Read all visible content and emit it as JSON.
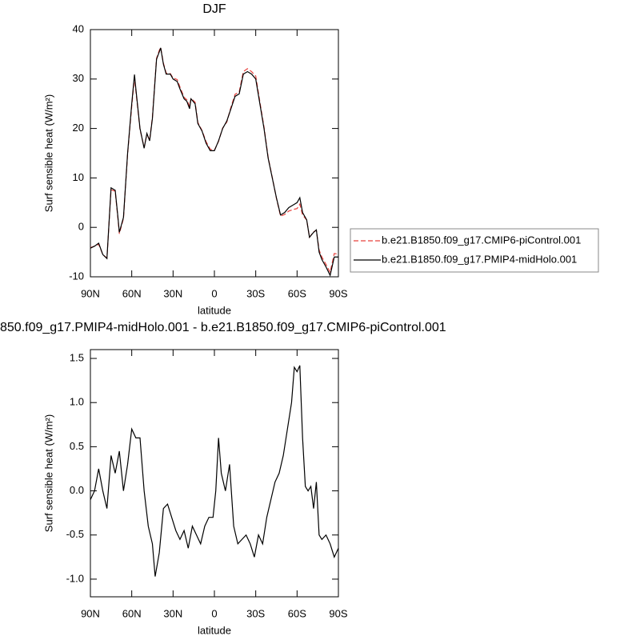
{
  "chart_data": [
    {
      "type": "line",
      "title": "DJF",
      "xlabel": "latitude",
      "ylabel": "Surf sensible heat (W/m²)",
      "xlim": [
        90,
        -90
      ],
      "ylim": [
        -10,
        40
      ],
      "xticks": [
        {
          "value": 90,
          "label": "90N"
        },
        {
          "value": 60,
          "label": "60N"
        },
        {
          "value": 30,
          "label": "30N"
        },
        0,
        {
          "value": -30,
          "label": "30S"
        },
        {
          "value": -60,
          "label": "60S"
        },
        {
          "value": -90,
          "label": "90S"
        }
      ],
      "yticks": [
        -10,
        0,
        10,
        20,
        30,
        40
      ],
      "legend": "outside-right",
      "x": [
        90,
        87,
        84,
        81,
        78,
        75,
        72,
        70,
        69,
        66,
        63,
        60,
        58,
        57,
        54,
        51,
        49,
        47,
        45,
        42,
        40,
        39,
        37,
        35,
        32,
        30,
        27,
        25,
        22,
        20,
        18,
        17,
        14,
        12,
        9,
        6,
        3,
        0,
        -3,
        -6,
        -9,
        -12,
        -15,
        -18,
        -21,
        -24,
        -27,
        -30,
        -33,
        -36,
        -39,
        -42,
        -45,
        -48,
        -51,
        -54,
        -57,
        -60,
        -62,
        -64,
        -67,
        -69,
        -72,
        -74,
        -76,
        -78,
        -81,
        -84,
        -87,
        -90
      ],
      "series": [
        {
          "name": "b.e21.B1850.f09_g17.CMIP6-piControl.001",
          "color": "#e8403c",
          "line_style": "dashed",
          "values": [
            -4.1,
            -3.8,
            -3.4,
            -5.5,
            -6.2,
            7.6,
            7.3,
            1.7,
            -1.3,
            1.8,
            14.8,
            24.5,
            30.3,
            27.6,
            19.8,
            16.2,
            18.8,
            17.7,
            22.3,
            34.2,
            35.8,
            36.4,
            33.2,
            31.2,
            31.1,
            30.2,
            29.9,
            28.4,
            26.3,
            25.8,
            24.5,
            26.1,
            25.3,
            21.2,
            19.6,
            17.3,
            15.8,
            15.6,
            17.4,
            20.1,
            21.3,
            24.3,
            26.9,
            27.4,
            31.5,
            32.1,
            31.5,
            30.6,
            25.4,
            20.3,
            14.2,
            10.1,
            5.9,
            2.3,
            2.6,
            3.3,
            3.6,
            3.8,
            4.7,
            2.5,
            1.5,
            -2.0,
            -0.9,
            -0.6,
            -4.6,
            -6.0,
            -7.5,
            -9.1,
            -5.3,
            -5.4
          ]
        },
        {
          "name": "b.e21.B1850.f09_g17.PMIP4-midHolo.001",
          "color": "#000000",
          "line_style": "solid",
          "values": [
            -4.2,
            -3.8,
            -3.2,
            -5.5,
            -6.3,
            8.0,
            7.5,
            2.0,
            -1.0,
            2.0,
            15.0,
            25.0,
            30.9,
            28.0,
            20.0,
            16.0,
            19.0,
            17.5,
            22.0,
            34.0,
            35.5,
            36.3,
            33.0,
            31.0,
            31.0,
            30.0,
            29.5,
            28.0,
            26.0,
            25.5,
            24.0,
            26.0,
            25.0,
            21.0,
            19.5,
            17.0,
            15.5,
            15.5,
            17.5,
            20.0,
            21.5,
            24.0,
            26.5,
            27.0,
            31.0,
            31.5,
            31.0,
            30.0,
            25.0,
            20.0,
            14.0,
            10.0,
            6.0,
            2.5,
            3.0,
            4.0,
            4.5,
            5.0,
            6.0,
            3.0,
            1.5,
            -2.0,
            -1.0,
            -0.5,
            -5.0,
            -6.5,
            -8.0,
            -9.7,
            -6.0,
            -6.0
          ]
        }
      ]
    },
    {
      "type": "line",
      "title": "850.f09_g17.PMIP4-midHolo.001 - b.e21.B1850.f09_g17.CMIP6-piControl.001",
      "xlabel": "latitude",
      "ylabel": "Surf sensible heat (W/m²)",
      "xlim": [
        90,
        -90
      ],
      "ylim": [
        -1.2,
        1.6
      ],
      "xticks": [
        {
          "value": 90,
          "label": "90N"
        },
        {
          "value": 60,
          "label": "60N"
        },
        {
          "value": 30,
          "label": "30N"
        },
        0,
        {
          "value": -30,
          "label": "30S"
        },
        {
          "value": -60,
          "label": "60S"
        },
        {
          "value": -90,
          "label": "90S"
        }
      ],
      "yticks": [
        {
          "value": -1,
          "label": "-1.0"
        },
        -0.5,
        {
          "value": 0,
          "label": "0.0"
        },
        0.5,
        {
          "value": 1,
          "label": "1.0"
        },
        1.5
      ],
      "x": [
        90,
        87,
        84,
        81,
        78,
        75,
        72,
        69,
        66,
        63,
        60,
        57,
        54,
        51,
        48,
        45,
        43,
        40,
        37,
        34,
        31,
        28,
        25,
        22,
        19,
        16,
        13,
        10,
        7,
        4,
        1,
        -1,
        -3,
        -5,
        -8,
        -11,
        -14,
        -17,
        -20,
        -23,
        -26,
        -29,
        -32,
        -35,
        -38,
        -41,
        -44,
        -47,
        -50,
        -53,
        -56,
        -58,
        -60,
        -62,
        -64,
        -66,
        -68,
        -70,
        -72,
        -74,
        -76,
        -78,
        -81,
        -84,
        -87,
        -90
      ],
      "series": [
        {
          "color": "#000000",
          "line_style": "solid",
          "values": [
            -0.1,
            0.0,
            0.25,
            0.0,
            -0.2,
            0.4,
            0.2,
            0.45,
            0.0,
            0.3,
            0.7,
            0.6,
            0.6,
            0.0,
            -0.4,
            -0.6,
            -0.97,
            -0.7,
            -0.2,
            -0.15,
            -0.3,
            -0.45,
            -0.55,
            -0.45,
            -0.65,
            -0.4,
            -0.5,
            -0.6,
            -0.4,
            -0.3,
            -0.3,
            0.0,
            0.6,
            0.2,
            0.0,
            0.3,
            -0.4,
            -0.6,
            -0.55,
            -0.5,
            -0.6,
            -0.75,
            -0.5,
            -0.6,
            -0.3,
            -0.1,
            0.1,
            0.2,
            0.4,
            0.7,
            1.0,
            1.4,
            1.35,
            1.42,
            0.6,
            0.05,
            0.0,
            0.05,
            -0.2,
            0.1,
            -0.5,
            -0.55,
            -0.5,
            -0.6,
            -0.75,
            -0.65
          ]
        }
      ]
    }
  ]
}
